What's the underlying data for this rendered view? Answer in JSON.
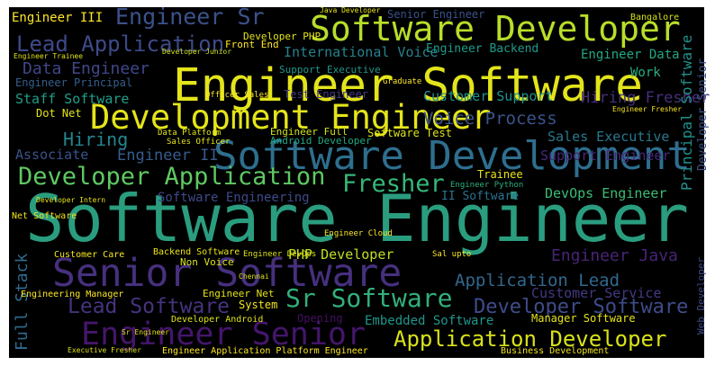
{
  "words": [
    "Software Engineer",
    "Engineer Software",
    "Senior Software",
    "Software Development",
    "Software Developer",
    "Development Engineer",
    "Engineer Senior",
    "Application Developer",
    "Sr Software",
    "Fresher",
    "Developer Application",
    "Lead Application",
    "Engineer Sr",
    "Data Engineer",
    "Application Lead",
    "Developer Software",
    "Lead Software",
    "Voice Process",
    "Hiring Fresher",
    "Customer Support",
    "International Voice",
    "Engineer Backend",
    "Engineer Data",
    "Work",
    "Staff Software",
    "Hiring",
    "Associate",
    "Engineer II",
    "Sales Executive",
    "Support Engineer",
    "DevOps Engineer",
    "Software Engineering",
    "II Software",
    "Engineer Java",
    "Customer Service",
    "Embedded Software",
    "PHP Developer",
    "Full Stack",
    "Principal Software",
    "Developer Senior",
    "Web Developer",
    "Engineer III",
    "Senior Engineer",
    "Engineer Principal",
    "Dot Net",
    "Test Engineer",
    "Support Executive",
    "Developer PHP",
    "Front End",
    "Bangalore",
    "Net Software",
    "Android Developer",
    "Engineer Full",
    "Software Test",
    "Trainee",
    "Engineer Python",
    "Engineer Cloud",
    "Customer Care",
    "Backend Software",
    "Engineer DevOps",
    "Engineering Manager",
    "Engineer Net",
    "System",
    "Developer Android",
    "Opening",
    "Manager Software",
    "Engineer Application Platform Engineer",
    "Business Development",
    "Executive Fresher",
    "Sr Engineer",
    "Non Voice",
    "Sal upto",
    "Data Platform",
    "Sales Officer",
    "Officer Sales",
    "Developer Junior",
    "Engineer Trainee",
    "Graduate",
    "Chennai",
    "Java Developer",
    "Engineer Fresher",
    "Developer Intern"
  ]
}
